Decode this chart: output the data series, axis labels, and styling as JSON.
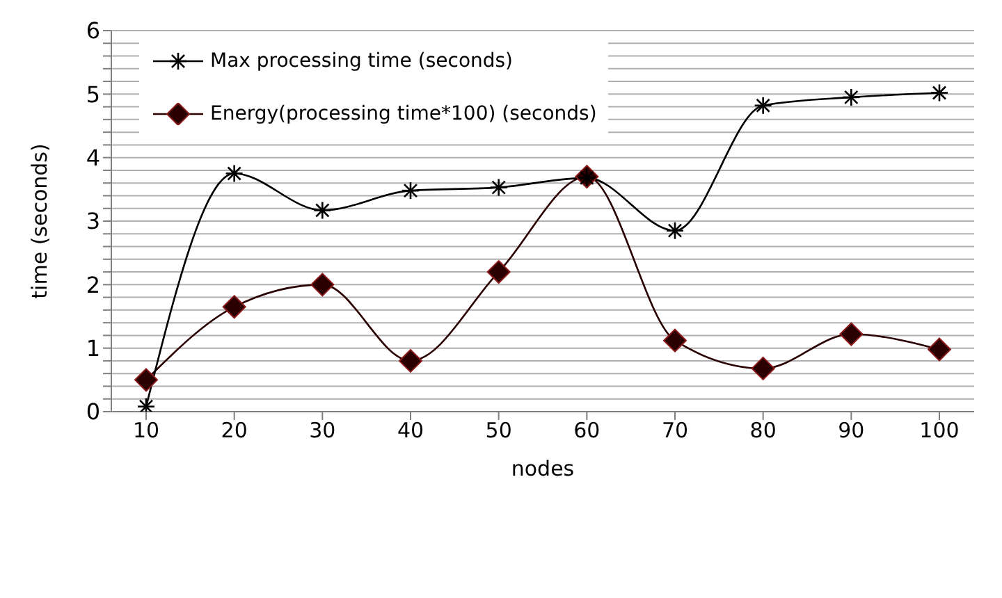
{
  "chart_data": {
    "type": "line",
    "xlabel": "nodes",
    "ylabel": "time (seconds)",
    "categories": [
      "10",
      "20",
      "30",
      "40",
      "50",
      "60",
      "70",
      "80",
      "90",
      "100"
    ],
    "series": [
      {
        "name": "Max processing time (seconds)",
        "color": "#000000",
        "marker": "cross",
        "values": [
          0.08,
          3.75,
          3.17,
          3.48,
          3.53,
          3.68,
          2.85,
          4.82,
          4.95,
          5.02
        ]
      },
      {
        "name": "Energy(processing time*100) (seconds)",
        "color": "#2a0000",
        "marker": "diamond",
        "values": [
          0.5,
          1.65,
          2.0,
          0.8,
          2.2,
          3.7,
          1.12,
          0.68,
          1.22,
          0.98
        ]
      }
    ],
    "ylim": [
      0,
      6
    ],
    "yticks": [
      0,
      {
        "value": 0.2,
        "label": null
      },
      {
        "value": 0.4,
        "label": null
      },
      {
        "value": 0.6,
        "label": null
      },
      {
        "value": 0.8,
        "label": null
      },
      1,
      {
        "value": 1.2,
        "label": null
      },
      {
        "value": 1.4,
        "label": null
      },
      {
        "value": 1.6,
        "label": null
      },
      {
        "value": 1.8,
        "label": null
      },
      2,
      {
        "value": 2.2,
        "label": null
      },
      {
        "value": 2.4,
        "label": null
      },
      {
        "value": 2.6,
        "label": null
      },
      {
        "value": 2.8,
        "label": null
      },
      3,
      {
        "value": 3.2,
        "label": null
      },
      {
        "value": 3.4,
        "label": null
      },
      {
        "value": 3.6,
        "label": null
      },
      {
        "value": 3.8,
        "label": null
      },
      4,
      {
        "value": 4.2,
        "label": null
      },
      {
        "value": 4.4,
        "label": null
      },
      {
        "value": 4.6,
        "label": null
      },
      {
        "value": 4.8,
        "label": null
      },
      5,
      {
        "value": 5.2,
        "label": null
      },
      {
        "value": 5.4,
        "label": null
      },
      {
        "value": 5.6,
        "label": null
      },
      {
        "value": 5.8,
        "label": null
      },
      6
    ],
    "grid": "y",
    "legend": "top left",
    "line_style": "solid"
  }
}
